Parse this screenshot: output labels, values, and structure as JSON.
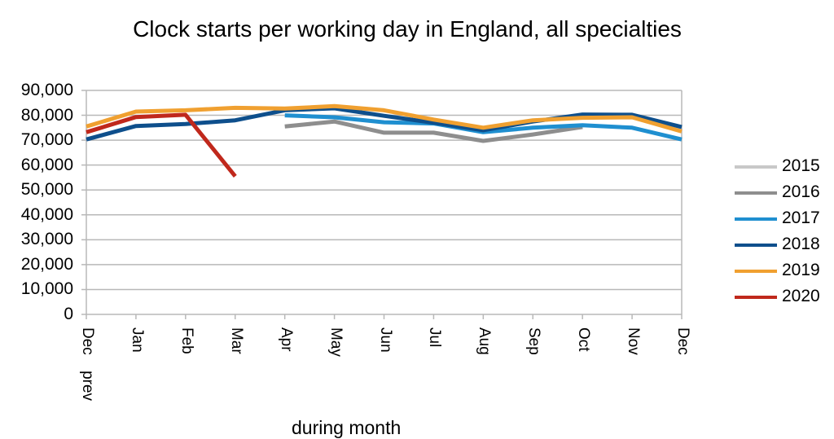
{
  "chart_data": {
    "type": "line",
    "title": "Clock starts per working day in England, all specialties",
    "xlabel": "during month",
    "ylabel": "",
    "ylim": [
      0,
      90000
    ],
    "yticks": [
      "0",
      "10,000",
      "20,000",
      "30,000",
      "40,000",
      "50,000",
      "60,000",
      "70,000",
      "80,000",
      "90,000"
    ],
    "grid": true,
    "legend_position": "right",
    "categories": [
      "Dec prev",
      "Jan",
      "Feb",
      "Mar",
      "Apr",
      "May",
      "Jun",
      "Jul",
      "Aug",
      "Sep",
      "Oct",
      "Nov",
      "Dec"
    ],
    "series": [
      {
        "name": "2015",
        "color": "#c8c8c8",
        "values": [
          null,
          null,
          null,
          null,
          null,
          null,
          null,
          null,
          null,
          null,
          null,
          null,
          null
        ]
      },
      {
        "name": "2016",
        "color": "#8e8e8e",
        "values": [
          null,
          null,
          null,
          null,
          75500,
          77500,
          73000,
          73000,
          69700,
          72300,
          75300,
          null,
          null
        ]
      },
      {
        "name": "2017",
        "color": "#1f8fd0",
        "values": [
          null,
          null,
          null,
          null,
          80000,
          79200,
          77200,
          76700,
          73200,
          75000,
          76000,
          75000,
          70300
        ]
      },
      {
        "name": "2018",
        "color": "#0e4f8c",
        "values": [
          70300,
          75700,
          76500,
          78000,
          82000,
          82800,
          79800,
          77000,
          74000,
          77500,
          80300,
          80200,
          75300
        ]
      },
      {
        "name": "2019",
        "color": "#f0a030",
        "values": [
          75500,
          81500,
          82000,
          83000,
          82700,
          83700,
          82000,
          78300,
          75000,
          78000,
          79000,
          79200,
          73500
        ]
      },
      {
        "name": "2020",
        "color": "#c0281c",
        "values": [
          73200,
          79300,
          80200,
          55500,
          null,
          null,
          null,
          null,
          null,
          null,
          null,
          null,
          null
        ]
      }
    ]
  }
}
